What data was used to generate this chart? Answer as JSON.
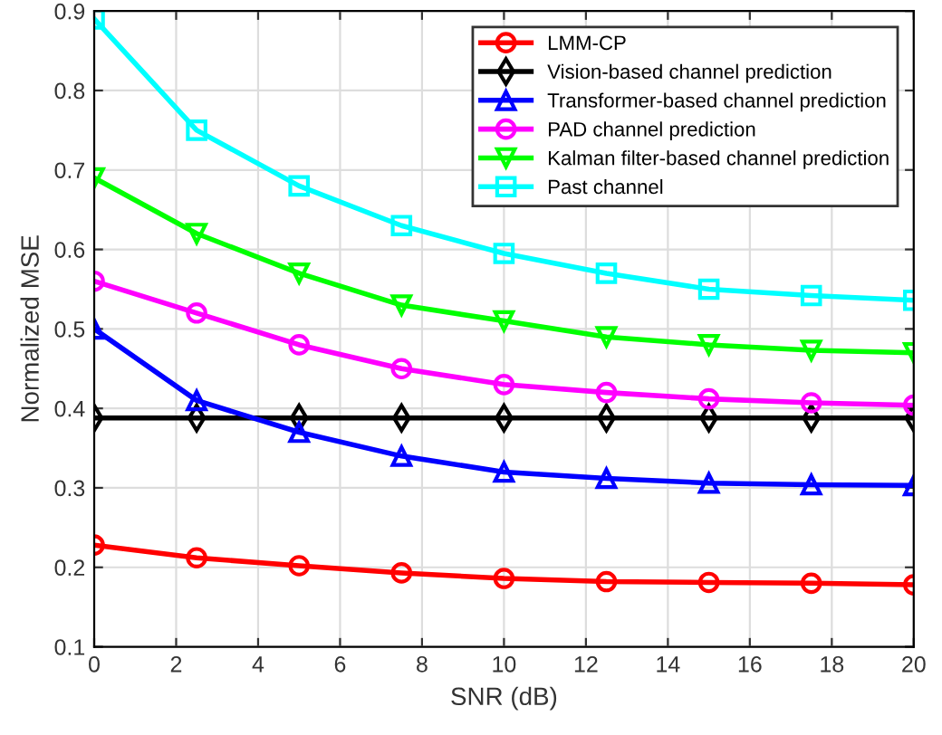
{
  "chart_data": {
    "type": "line",
    "xlabel": "SNR (dB)",
    "ylabel": "Normalized MSE",
    "x": [
      0,
      2.5,
      5,
      7.5,
      10,
      12.5,
      15,
      17.5,
      20
    ],
    "series": [
      {
        "name": "LMM-CP",
        "color": "#ff0000",
        "marker": "circle",
        "values": [
          0.228,
          0.212,
          0.202,
          0.193,
          0.186,
          0.182,
          0.181,
          0.18,
          0.178
        ]
      },
      {
        "name": "Vision-based channel prediction",
        "color": "#000000",
        "marker": "diamond",
        "values": [
          0.388,
          0.388,
          0.388,
          0.388,
          0.388,
          0.388,
          0.388,
          0.388,
          0.388
        ]
      },
      {
        "name": "Transformer-based channel prediction",
        "color": "#0000ff",
        "marker": "triangle",
        "values": [
          0.5,
          0.41,
          0.37,
          0.34,
          0.32,
          0.312,
          0.306,
          0.304,
          0.303
        ]
      },
      {
        "name": "PAD channel prediction",
        "color": "#ff00ff",
        "marker": "circle",
        "values": [
          0.56,
          0.52,
          0.48,
          0.45,
          0.43,
          0.42,
          0.412,
          0.407,
          0.404
        ]
      },
      {
        "name": "Kalman filter-based channel prediction",
        "color": "#00ff00",
        "marker": "triangle_down",
        "values": [
          0.69,
          0.62,
          0.57,
          0.53,
          0.51,
          0.49,
          0.48,
          0.473,
          0.47
        ]
      },
      {
        "name": "Past channel",
        "color": "#00ffff",
        "marker": "square",
        "values": [
          0.89,
          0.75,
          0.68,
          0.63,
          0.595,
          0.57,
          0.55,
          0.542,
          0.536
        ]
      }
    ],
    "xlim": [
      0,
      20
    ],
    "xticks": [
      0,
      2,
      4,
      6,
      8,
      10,
      12,
      14,
      16,
      18,
      20
    ],
    "ylim": [
      0.1,
      0.9
    ],
    "yticks": [
      0.1,
      0.2,
      0.3,
      0.4,
      0.5,
      0.6,
      0.7,
      0.8,
      0.9
    ],
    "grid": true,
    "legend": "top right",
    "line_style": "solid"
  }
}
